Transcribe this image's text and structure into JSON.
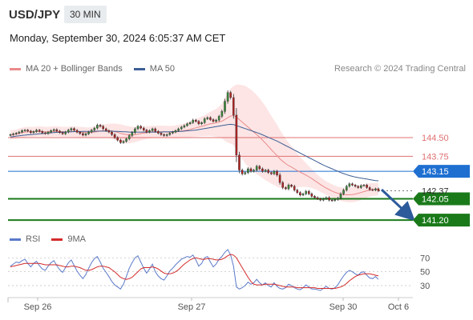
{
  "header": {
    "symbol": "USD/JPY",
    "interval": "30 MIN",
    "timestamp": "Monday, September 30, 2024 6:05:37 AM CET"
  },
  "legend": {
    "ma20_label": "MA 20 + Bollinger Bands",
    "ma50_label": "MA 50",
    "ma20_color": "#e98a8a",
    "ma50_color": "#3d5f95",
    "copyright": "Research © 2024 Trading Central"
  },
  "rsi_legend": {
    "rsi_label": "RSI",
    "ma_label": "9MA",
    "rsi_color": "#5a79c9",
    "ma_color": "#d42b2b"
  },
  "chart_data": {
    "type": "candlestick",
    "price_range": [
      140.85,
      146.9
    ],
    "x_labels": [
      "Sep 26",
      "Sep 27",
      "Sep 30",
      "Oct 6"
    ],
    "current_price": "142.37",
    "levels": [
      {
        "value": 144.5,
        "label": "144.50",
        "kind": "resistance",
        "color": "#e07070"
      },
      {
        "value": 143.75,
        "label": "143.75",
        "kind": "resistance",
        "color": "#e07070"
      },
      {
        "value": 143.15,
        "label": "143.15",
        "kind": "pivot",
        "color": "#1f6fd1"
      },
      {
        "value": 142.05,
        "label": "142.05",
        "kind": "support",
        "color": "#1a7a1a"
      },
      {
        "value": 141.2,
        "label": "141.20",
        "kind": "support",
        "color": "#1a7a1a"
      }
    ],
    "close": [
      144.62,
      144.65,
      144.68,
      144.72,
      144.78,
      144.8,
      144.76,
      144.7,
      144.74,
      144.8,
      144.75,
      144.69,
      144.66,
      144.72,
      144.78,
      144.82,
      144.76,
      144.7,
      144.65,
      144.72,
      144.8,
      144.86,
      144.79,
      144.72,
      144.66,
      144.6,
      144.65,
      144.72,
      144.8,
      144.88,
      145.0,
      144.95,
      144.85,
      144.78,
      144.72,
      144.62,
      144.5,
      144.4,
      144.3,
      144.35,
      144.45,
      144.58,
      144.7,
      144.85,
      144.95,
      144.88,
      144.8,
      144.72,
      144.78,
      144.85,
      144.75,
      144.68,
      144.62,
      144.58,
      144.62,
      144.68,
      144.72,
      144.78,
      144.85,
      144.92,
      144.98,
      145.05,
      145.1,
      145.2,
      145.15,
      145.05,
      145.1,
      145.25,
      145.3,
      145.22,
      145.15,
      145.2,
      145.35,
      145.55,
      145.95,
      146.3,
      146.1,
      145.4,
      143.8,
      143.2,
      143.05,
      143.1,
      143.25,
      143.15,
      143.2,
      143.35,
      143.25,
      143.15,
      143.2,
      143.1,
      143.05,
      143.15,
      143.0,
      142.7,
      142.5,
      142.45,
      142.6,
      142.55,
      142.4,
      142.3,
      142.2,
      142.25,
      142.35,
      142.25,
      142.15,
      142.1,
      142.05,
      142.0,
      142.05,
      142.1,
      142.0,
      141.98,
      142.02,
      142.08,
      142.25,
      142.4,
      142.55,
      142.65,
      142.6,
      142.55,
      142.5,
      142.58,
      142.6,
      142.5,
      142.42,
      142.4,
      142.45,
      142.37
    ],
    "ma20": [
      144.6,
      144.62,
      144.64,
      144.67,
      144.7,
      144.72,
      144.73,
      144.73,
      144.73,
      144.74,
      144.75,
      144.74,
      144.73,
      144.73,
      144.74,
      144.75,
      144.75,
      144.74,
      144.73,
      144.73,
      144.73,
      144.74,
      144.74,
      144.73,
      144.72,
      144.71,
      144.7,
      144.7,
      144.71,
      144.72,
      144.74,
      144.76,
      144.77,
      144.77,
      144.77,
      144.76,
      144.74,
      144.71,
      144.67,
      144.64,
      144.62,
      144.61,
      144.61,
      144.62,
      144.64,
      144.66,
      144.68,
      144.7,
      144.71,
      144.73,
      144.73,
      144.73,
      144.73,
      144.73,
      144.72,
      144.72,
      144.72,
      144.73,
      144.74,
      144.76,
      144.78,
      144.8,
      144.83,
      144.86,
      144.89,
      144.92,
      144.95,
      144.98,
      145.02,
      145.05,
      145.07,
      145.09,
      145.12,
      145.16,
      145.22,
      145.3,
      145.36,
      145.38,
      145.32,
      145.22,
      145.12,
      145.02,
      144.92,
      144.82,
      144.72,
      144.62,
      144.52,
      144.4,
      144.28,
      144.15,
      144.02,
      143.9,
      143.78,
      143.65,
      143.55,
      143.46,
      143.38,
      143.32,
      143.25,
      143.18,
      143.12,
      143.06,
      143.0,
      142.93,
      142.86,
      142.78,
      142.7,
      142.62,
      142.55,
      142.48,
      142.42,
      142.36,
      142.31,
      142.27,
      142.24,
      142.22,
      142.21,
      142.21,
      142.22,
      142.24,
      142.27,
      142.3,
      142.34,
      142.37,
      142.4,
      142.42,
      142.43,
      142.44
    ],
    "ma50": [
      144.52,
      144.54,
      144.56,
      144.57,
      144.59,
      144.6,
      144.61,
      144.62,
      144.63,
      144.64,
      144.65,
      144.66,
      144.67,
      144.68,
      144.69,
      144.7,
      144.71,
      144.71,
      144.72,
      144.72,
      144.73,
      144.73,
      144.74,
      144.74,
      144.74,
      144.75,
      144.75,
      144.75,
      144.75,
      144.75,
      144.76,
      144.76,
      144.76,
      144.76,
      144.76,
      144.76,
      144.75,
      144.75,
      144.74,
      144.73,
      144.73,
      144.72,
      144.72,
      144.72,
      144.72,
      144.72,
      144.72,
      144.72,
      144.72,
      144.72,
      144.72,
      144.72,
      144.72,
      144.73,
      144.73,
      144.73,
      144.74,
      144.74,
      144.75,
      144.75,
      144.76,
      144.77,
      144.78,
      144.79,
      144.8,
      144.82,
      144.84,
      144.86,
      144.88,
      144.9,
      144.92,
      144.94,
      144.96,
      144.98,
      145.0,
      145.02,
      145.03,
      145.02,
      144.98,
      144.94,
      144.9,
      144.86,
      144.82,
      144.78,
      144.74,
      144.7,
      144.66,
      144.61,
      144.56,
      144.51,
      144.46,
      144.41,
      144.36,
      144.3,
      144.24,
      144.18,
      144.12,
      144.06,
      144.0,
      143.94,
      143.88,
      143.82,
      143.76,
      143.7,
      143.64,
      143.58,
      143.52,
      143.46,
      143.4,
      143.35,
      143.3,
      143.25,
      143.2,
      143.15,
      143.1,
      143.06,
      143.02,
      142.98,
      142.95,
      142.92,
      142.9,
      142.88,
      142.86,
      142.84,
      142.82,
      142.8,
      142.78,
      142.77
    ],
    "bb_width": [
      0.18,
      0.18,
      0.19,
      0.19,
      0.2,
      0.2,
      0.2,
      0.2,
      0.2,
      0.2,
      0.2,
      0.2,
      0.2,
      0.2,
      0.2,
      0.2,
      0.2,
      0.2,
      0.2,
      0.2,
      0.2,
      0.21,
      0.21,
      0.21,
      0.21,
      0.21,
      0.21,
      0.21,
      0.21,
      0.22,
      0.24,
      0.25,
      0.26,
      0.27,
      0.28,
      0.3,
      0.32,
      0.34,
      0.36,
      0.36,
      0.35,
      0.34,
      0.32,
      0.3,
      0.29,
      0.28,
      0.27,
      0.26,
      0.25,
      0.25,
      0.25,
      0.25,
      0.25,
      0.25,
      0.25,
      0.25,
      0.25,
      0.26,
      0.27,
      0.28,
      0.29,
      0.3,
      0.31,
      0.33,
      0.35,
      0.37,
      0.39,
      0.42,
      0.45,
      0.48,
      0.52,
      0.56,
      0.62,
      0.7,
      0.85,
      1.0,
      1.1,
      1.18,
      1.3,
      1.4,
      1.48,
      1.55,
      1.58,
      1.6,
      1.6,
      1.58,
      1.55,
      1.52,
      1.48,
      1.42,
      1.36,
      1.3,
      1.24,
      1.16,
      1.08,
      1.0,
      0.92,
      0.84,
      0.76,
      0.68,
      0.6,
      0.54,
      0.48,
      0.42,
      0.38,
      0.34,
      0.31,
      0.29,
      0.28,
      0.27,
      0.27,
      0.27,
      0.27,
      0.27,
      0.27,
      0.28,
      0.29,
      0.3,
      0.31,
      0.31,
      0.31,
      0.3,
      0.29,
      0.28,
      0.27,
      0.26,
      0.25,
      0.25
    ],
    "rsi_axis": [
      30,
      50,
      70
    ],
    "rsi": [
      58,
      61,
      64,
      63,
      66,
      68,
      62,
      57,
      62,
      65,
      59,
      54,
      52,
      58,
      63,
      66,
      59,
      53,
      49,
      56,
      63,
      67,
      59,
      51,
      45,
      40,
      46,
      55,
      63,
      69,
      72,
      64,
      55,
      49,
      43,
      36,
      31,
      28,
      25,
      32,
      43,
      55,
      63,
      70,
      73,
      64,
      55,
      48,
      54,
      61,
      50,
      44,
      40,
      38,
      44,
      51,
      55,
      60,
      64,
      68,
      70,
      72,
      71,
      74,
      67,
      58,
      62,
      70,
      72,
      64,
      57,
      61,
      68,
      72,
      78,
      82,
      74,
      58,
      28,
      25,
      27,
      30,
      35,
      32,
      34,
      39,
      34,
      31,
      34,
      30,
      28,
      34,
      29,
      26,
      25,
      27,
      32,
      30,
      27,
      25,
      24,
      27,
      31,
      28,
      25,
      25,
      24,
      23,
      26,
      29,
      26,
      25,
      27,
      31,
      38,
      44,
      49,
      52,
      50,
      47,
      45,
      49,
      50,
      45,
      41,
      40,
      43,
      39
    ],
    "rsi_ma": [
      57,
      58,
      59,
      60,
      61,
      62,
      62,
      62,
      62,
      62,
      62,
      61,
      60,
      60,
      60,
      60,
      60,
      59,
      58,
      57,
      57,
      58,
      58,
      57,
      56,
      54,
      52,
      52,
      53,
      55,
      57,
      58,
      58,
      57,
      56,
      53,
      50,
      46,
      42,
      40,
      39,
      40,
      42,
      46,
      50,
      54,
      56,
      56,
      56,
      57,
      56,
      54,
      51,
      48,
      47,
      47,
      48,
      50,
      53,
      57,
      61,
      64,
      67,
      69,
      70,
      69,
      68,
      68,
      69,
      69,
      68,
      67,
      67,
      68,
      70,
      73,
      75,
      74,
      70,
      63,
      56,
      49,
      42,
      36,
      32,
      31,
      31,
      31,
      32,
      32,
      32,
      32,
      31,
      30,
      29,
      28,
      28,
      28,
      28,
      27,
      27,
      27,
      27,
      27,
      27,
      27,
      26,
      26,
      26,
      26,
      26,
      26,
      26,
      27,
      28,
      30,
      33,
      37,
      40,
      43,
      45,
      46,
      47,
      47,
      47,
      46,
      45,
      44
    ]
  }
}
